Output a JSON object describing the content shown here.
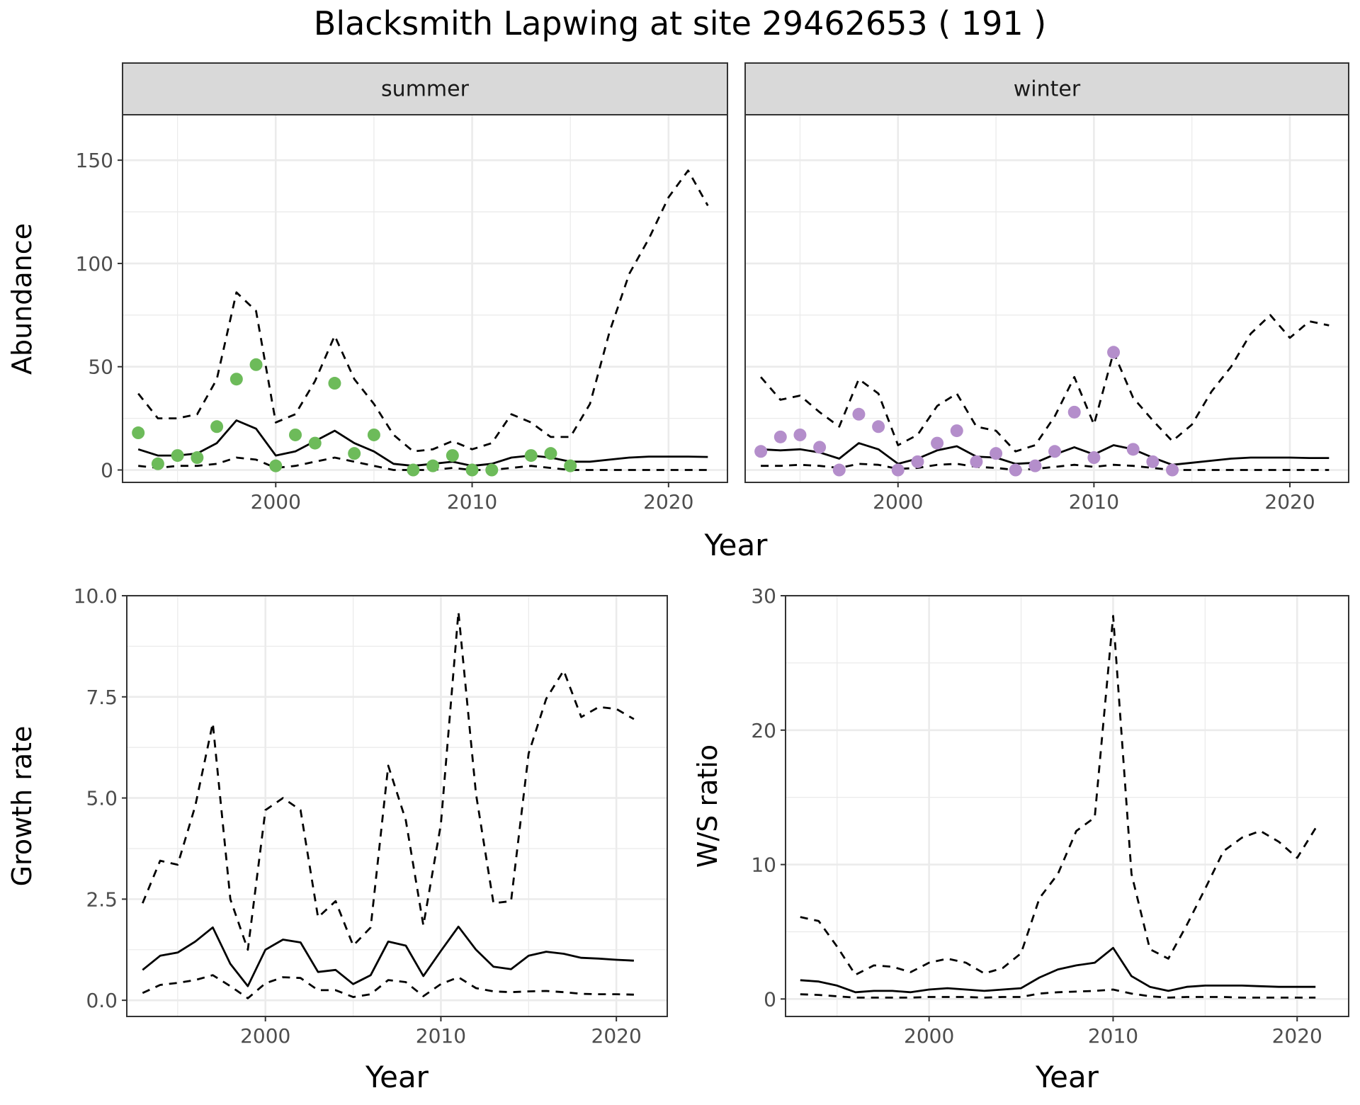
{
  "title": "Blacksmith Lapwing at site 29462653 ( 191 )",
  "colors": {
    "summer_points": "#6dbb5a",
    "winter_points": "#b48ecb",
    "lines": "#000000",
    "grid": "#ebebeb",
    "strip_fill": "#d9d9d9",
    "strip_border": "#333333"
  },
  "chart_data": [
    {
      "type": "line",
      "facet": "summer",
      "xlabel": "Year",
      "ylabel": "Abundance",
      "xlim": [
        1992.2,
        2023.0
      ],
      "ylim": [
        -6,
        172
      ],
      "x_ticks": [
        2000,
        2010,
        2020
      ],
      "y_ticks": [
        0,
        50,
        100,
        150
      ],
      "grid": true,
      "series": [
        {
          "style": "solid",
          "x": [
            1993,
            1994,
            1995,
            1996,
            1997,
            1998,
            1999,
            2000,
            2001,
            2002,
            2003,
            2004,
            2005,
            2006,
            2007,
            2008,
            2009,
            2010,
            2011,
            2012,
            2013,
            2014,
            2015,
            2016,
            2017,
            2018,
            2019,
            2020,
            2021,
            2022
          ],
          "values": [
            10,
            7,
            7,
            8,
            13,
            24,
            20,
            7,
            9,
            14,
            19,
            13,
            9,
            3,
            2,
            3,
            4,
            2,
            3,
            6,
            7,
            6,
            4,
            4,
            5,
            6,
            6.5,
            6.5,
            6.5,
            6.3
          ]
        },
        {
          "style": "dashed",
          "x": [
            1993,
            1994,
            1995,
            1996,
            1997,
            1998,
            1999,
            2000,
            2001,
            2002,
            2003,
            2004,
            2005,
            2006,
            2007,
            2008,
            2009,
            2010,
            2011,
            2012,
            2013,
            2014,
            2015,
            2016,
            2017,
            2018,
            2019,
            2020,
            2021,
            2022
          ],
          "values": [
            37,
            25,
            25,
            27,
            44,
            86,
            77,
            23,
            27,
            43,
            65,
            44,
            32,
            17,
            9,
            10,
            14,
            10,
            13,
            27,
            23,
            16,
            16,
            32,
            67,
            95,
            112,
            132,
            145,
            128
          ]
        },
        {
          "style": "dashed",
          "x": [
            1993,
            1994,
            1995,
            1996,
            1997,
            1998,
            1999,
            2000,
            2001,
            2002,
            2003,
            2004,
            2005,
            2006,
            2007,
            2008,
            2009,
            2010,
            2011,
            2012,
            2013,
            2014,
            2015,
            2016,
            2017,
            2018,
            2019,
            2020,
            2021,
            2022
          ],
          "values": [
            2,
            1,
            2,
            2,
            3,
            6,
            5,
            1,
            2,
            4,
            6,
            4,
            2,
            0,
            0,
            0,
            1,
            0,
            0,
            1,
            2,
            1,
            0,
            0,
            0,
            0,
            0,
            0,
            0,
            0
          ]
        },
        {
          "style": "points",
          "x": [
            1993,
            1994,
            1995,
            1996,
            1997,
            1998,
            1999,
            2000,
            2001,
            2002,
            2003,
            2004,
            2005,
            2007,
            2008,
            2009,
            2010,
            2011,
            2013,
            2014,
            2015
          ],
          "values": [
            18,
            3,
            7,
            6,
            21,
            44,
            51,
            2,
            17,
            13,
            42,
            8,
            17,
            0,
            2,
            7,
            0,
            0,
            7,
            8,
            2
          ]
        }
      ]
    },
    {
      "type": "line",
      "facet": "winter",
      "xlabel": "Year",
      "ylabel": "Abundance",
      "xlim": [
        1992.2,
        2023.0
      ],
      "ylim": [
        -6,
        172
      ],
      "x_ticks": [
        2000,
        2010,
        2020
      ],
      "y_ticks": [
        0,
        50,
        100,
        150
      ],
      "grid": true,
      "series": [
        {
          "style": "solid",
          "x": [
            1993,
            1994,
            1995,
            1996,
            1997,
            1998,
            1999,
            2000,
            2001,
            2002,
            2003,
            2004,
            2005,
            2006,
            2007,
            2008,
            2009,
            2010,
            2011,
            2012,
            2013,
            2014,
            2015,
            2016,
            2017,
            2018,
            2019,
            2020,
            2021,
            2022
          ],
          "values": [
            10,
            9.5,
            10,
            8.5,
            5.5,
            13,
            10,
            3,
            5.5,
            9.5,
            11.5,
            6.5,
            6,
            3,
            3.5,
            7.5,
            11,
            7.5,
            12,
            10,
            6,
            2.5,
            3.5,
            4.5,
            5.5,
            6,
            6,
            6,
            5.8,
            5.8
          ]
        },
        {
          "style": "dashed",
          "x": [
            1993,
            1994,
            1995,
            1996,
            1997,
            1998,
            1999,
            2000,
            2001,
            2002,
            2003,
            2004,
            2005,
            2006,
            2007,
            2008,
            2009,
            2010,
            2011,
            2012,
            2013,
            2014,
            2015,
            2016,
            2017,
            2018,
            2019,
            2020,
            2021,
            2022
          ],
          "values": [
            45,
            34,
            36,
            28,
            21,
            44,
            37,
            12,
            17,
            31,
            37,
            21,
            19,
            9,
            12,
            26,
            45,
            22,
            57,
            35,
            24,
            14,
            22,
            38,
            50,
            66,
            75,
            64,
            72,
            70
          ]
        },
        {
          "style": "dashed",
          "x": [
            1993,
            1994,
            1995,
            1996,
            1997,
            1998,
            1999,
            2000,
            2001,
            2002,
            2003,
            2004,
            2005,
            2006,
            2007,
            2008,
            2009,
            2010,
            2011,
            2012,
            2013,
            2014,
            2015,
            2016,
            2017,
            2018,
            2019,
            2020,
            2021,
            2022
          ],
          "values": [
            2,
            2,
            2.5,
            2,
            1,
            3,
            2.5,
            0.5,
            1,
            2.5,
            3,
            1.5,
            1,
            0,
            0.5,
            1.5,
            2.5,
            1.5,
            2.5,
            2,
            1,
            0,
            0,
            0,
            0,
            0,
            0,
            0,
            0,
            0
          ]
        },
        {
          "style": "points",
          "x": [
            1993,
            1994,
            1995,
            1996,
            1997,
            1998,
            1999,
            2000,
            2001,
            2002,
            2003,
            2004,
            2005,
            2006,
            2007,
            2008,
            2009,
            2010,
            2011,
            2012,
            2013,
            2014
          ],
          "values": [
            9,
            16,
            17,
            11,
            0,
            27,
            21,
            0,
            4,
            13,
            19,
            4,
            8,
            0,
            2,
            9,
            28,
            6,
            57,
            10,
            4,
            0
          ]
        }
      ]
    },
    {
      "type": "line",
      "xlabel": "Year",
      "ylabel": "Growth rate",
      "xlim": [
        1992.1,
        2022.9
      ],
      "ylim": [
        -0.4,
        10.0
      ],
      "x_ticks": [
        2000,
        2010,
        2020
      ],
      "y_ticks": [
        0.0,
        2.5,
        5.0,
        7.5,
        10.0
      ],
      "y_tick_labels": [
        "0.0",
        "2.5",
        "5.0",
        "7.5",
        "10.0"
      ],
      "grid": true,
      "series": [
        {
          "style": "solid",
          "x": [
            1993,
            1994,
            1995,
            1996,
            1997,
            1998,
            1999,
            2000,
            2001,
            2002,
            2003,
            2004,
            2005,
            2006,
            2007,
            2008,
            2009,
            2010,
            2011,
            2012,
            2013,
            2014,
            2015,
            2016,
            2017,
            2018,
            2019,
            2020,
            2021
          ],
          "values": [
            0.75,
            1.1,
            1.18,
            1.45,
            1.8,
            0.9,
            0.35,
            1.25,
            1.5,
            1.43,
            0.7,
            0.75,
            0.4,
            0.62,
            1.45,
            1.35,
            0.6,
            1.22,
            1.82,
            1.25,
            0.83,
            0.77,
            1.1,
            1.2,
            1.15,
            1.05,
            1.03,
            1.0,
            0.98
          ]
        },
        {
          "style": "dashed",
          "x": [
            1993,
            1994,
            1995,
            1996,
            1997,
            1998,
            1999,
            2000,
            2001,
            2002,
            2003,
            2004,
            2005,
            2006,
            2007,
            2008,
            2009,
            2010,
            2011,
            2012,
            2013,
            2014,
            2015,
            2016,
            2017,
            2018,
            2019,
            2020,
            2021
          ],
          "values": [
            2.4,
            3.45,
            3.35,
            4.8,
            6.85,
            2.5,
            1.25,
            4.7,
            5.0,
            4.7,
            2.05,
            2.45,
            1.35,
            1.8,
            5.8,
            4.45,
            1.85,
            4.35,
            9.6,
            5.1,
            2.4,
            2.45,
            6.1,
            7.45,
            8.15,
            7.0,
            7.25,
            7.2,
            6.95
          ]
        },
        {
          "style": "dashed",
          "x": [
            1993,
            1994,
            1995,
            1996,
            1997,
            1998,
            1999,
            2000,
            2001,
            2002,
            2003,
            2004,
            2005,
            2006,
            2007,
            2008,
            2009,
            2010,
            2011,
            2012,
            2013,
            2014,
            2015,
            2016,
            2017,
            2018,
            2019,
            2020,
            2021
          ],
          "values": [
            0.18,
            0.38,
            0.43,
            0.5,
            0.62,
            0.35,
            0.05,
            0.42,
            0.57,
            0.55,
            0.25,
            0.25,
            0.08,
            0.15,
            0.5,
            0.45,
            0.1,
            0.4,
            0.57,
            0.3,
            0.22,
            0.2,
            0.22,
            0.23,
            0.2,
            0.16,
            0.15,
            0.15,
            0.14
          ]
        }
      ]
    },
    {
      "type": "line",
      "xlabel": "Year",
      "ylabel": "W/S ratio",
      "xlim": [
        1992.2,
        2022.8
      ],
      "ylim": [
        -1.3,
        30.0
      ],
      "x_ticks": [
        2000,
        2010,
        2020
      ],
      "y_ticks": [
        0,
        10,
        20,
        30
      ],
      "grid": true,
      "series": [
        {
          "style": "solid",
          "x": [
            1993,
            1994,
            1995,
            1996,
            1997,
            1998,
            1999,
            2000,
            2001,
            2002,
            2003,
            2004,
            2005,
            2006,
            2007,
            2008,
            2009,
            2010,
            2011,
            2012,
            2013,
            2014,
            2015,
            2016,
            2017,
            2018,
            2019,
            2020,
            2021
          ],
          "values": [
            1.4,
            1.3,
            1.0,
            0.5,
            0.6,
            0.6,
            0.5,
            0.7,
            0.8,
            0.7,
            0.6,
            0.7,
            0.8,
            1.6,
            2.2,
            2.5,
            2.7,
            3.8,
            1.7,
            0.9,
            0.6,
            0.9,
            1.0,
            1.0,
            1.0,
            0.95,
            0.9,
            0.9,
            0.9
          ]
        },
        {
          "style": "dashed",
          "x": [
            1993,
            1994,
            1995,
            1996,
            1997,
            1998,
            1999,
            2000,
            2001,
            2002,
            2003,
            2004,
            2005,
            2006,
            2007,
            2008,
            2009,
            2010,
            2011,
            2012,
            2013,
            2014,
            2015,
            2016,
            2017,
            2018,
            2019,
            2020,
            2021
          ],
          "values": [
            6.1,
            5.8,
            3.9,
            1.8,
            2.5,
            2.4,
            2.0,
            2.7,
            3.0,
            2.7,
            1.9,
            2.3,
            3.4,
            7.5,
            9.3,
            12.5,
            13.5,
            28.5,
            9.3,
            3.7,
            3.0,
            5.5,
            8.2,
            11.0,
            12.0,
            12.5,
            11.7,
            10.5,
            12.7
          ]
        },
        {
          "style": "dashed",
          "x": [
            1993,
            1994,
            1995,
            1996,
            1997,
            1998,
            1999,
            2000,
            2001,
            2002,
            2003,
            2004,
            2005,
            2006,
            2007,
            2008,
            2009,
            2010,
            2011,
            2012,
            2013,
            2014,
            2015,
            2016,
            2017,
            2018,
            2019,
            2020,
            2021
          ],
          "values": [
            0.35,
            0.3,
            0.2,
            0.1,
            0.1,
            0.1,
            0.1,
            0.15,
            0.15,
            0.15,
            0.1,
            0.15,
            0.15,
            0.4,
            0.5,
            0.55,
            0.6,
            0.7,
            0.4,
            0.2,
            0.1,
            0.15,
            0.15,
            0.15,
            0.1,
            0.1,
            0.1,
            0.1,
            0.1
          ]
        }
      ]
    }
  ]
}
